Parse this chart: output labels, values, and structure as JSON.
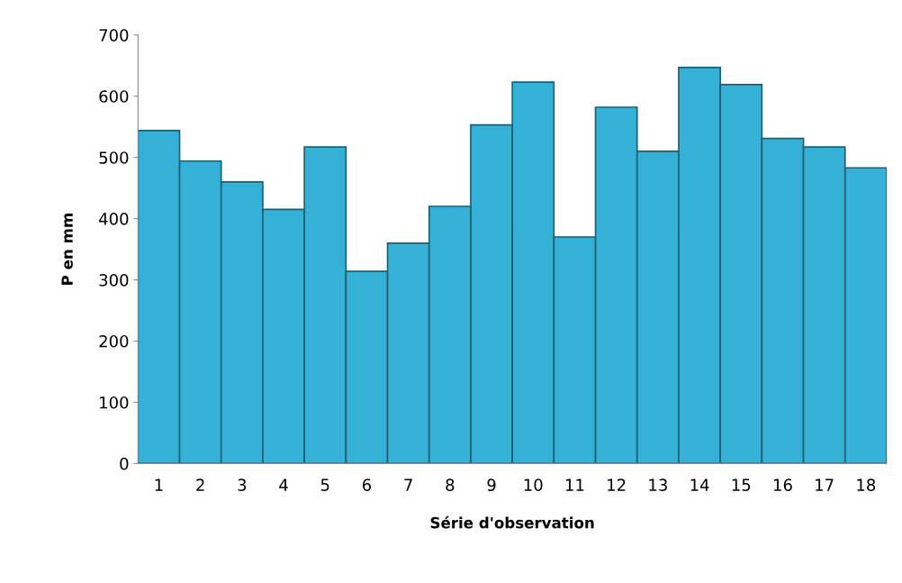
{
  "chart_data": {
    "type": "bar",
    "xlabel": "Série d'observation",
    "ylabel": "P en mm",
    "categories": [
      "1",
      "2",
      "3",
      "4",
      "5",
      "6",
      "7",
      "8",
      "9",
      "10",
      "11",
      "12",
      "13",
      "14",
      "15",
      "16",
      "17",
      "18"
    ],
    "values": [
      544,
      494,
      460,
      415,
      517,
      314,
      360,
      420,
      553,
      623,
      370,
      582,
      510,
      647,
      619,
      531,
      517,
      483
    ],
    "color": "#35b0d6",
    "ylim": [
      0,
      700
    ],
    "yticks": [
      0,
      100,
      200,
      300,
      400,
      500,
      600,
      700
    ],
    "grid": false,
    "legend": false
  }
}
